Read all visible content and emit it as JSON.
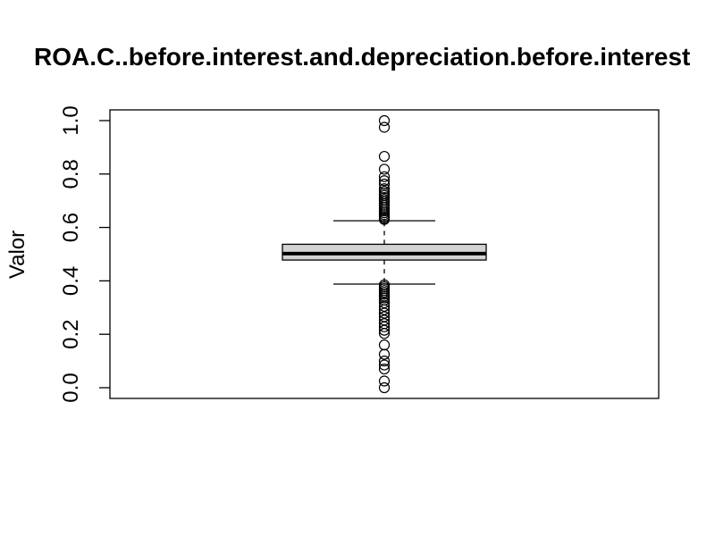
{
  "chart_data": {
    "type": "box",
    "title": "ROA.C..before.interest.and.depreciation.before.interest",
    "xlabel": "",
    "ylabel": "Valor",
    "ylim": [
      0.0,
      1.0
    ],
    "y_ticks": [
      "0.0",
      "0.2",
      "0.4",
      "0.6",
      "0.8",
      "1.0"
    ],
    "grid": false,
    "legend": "none",
    "box": {
      "q1": 0.478,
      "median": 0.502,
      "q3": 0.537,
      "whisker_low": 0.388,
      "whisker_high": 0.625
    },
    "outliers_high": [
      1.0,
      0.975,
      0.866,
      0.818,
      0.79,
      0.775,
      0.762,
      0.745,
      0.735,
      0.727,
      0.72,
      0.712,
      0.705,
      0.698,
      0.69,
      0.683,
      0.676,
      0.669,
      0.662,
      0.655,
      0.648,
      0.641,
      0.635,
      0.63
    ],
    "outliers_low": [
      0.385,
      0.378,
      0.371,
      0.364,
      0.357,
      0.35,
      0.343,
      0.336,
      0.328,
      0.318,
      0.305,
      0.292,
      0.279,
      0.266,
      0.253,
      0.24,
      0.228,
      0.215,
      0.203,
      0.16,
      0.125,
      0.1,
      0.085,
      0.07,
      0.025,
      0.0
    ],
    "colors": {
      "box_fill": "#d3d3d3",
      "stroke": "#000000"
    }
  }
}
